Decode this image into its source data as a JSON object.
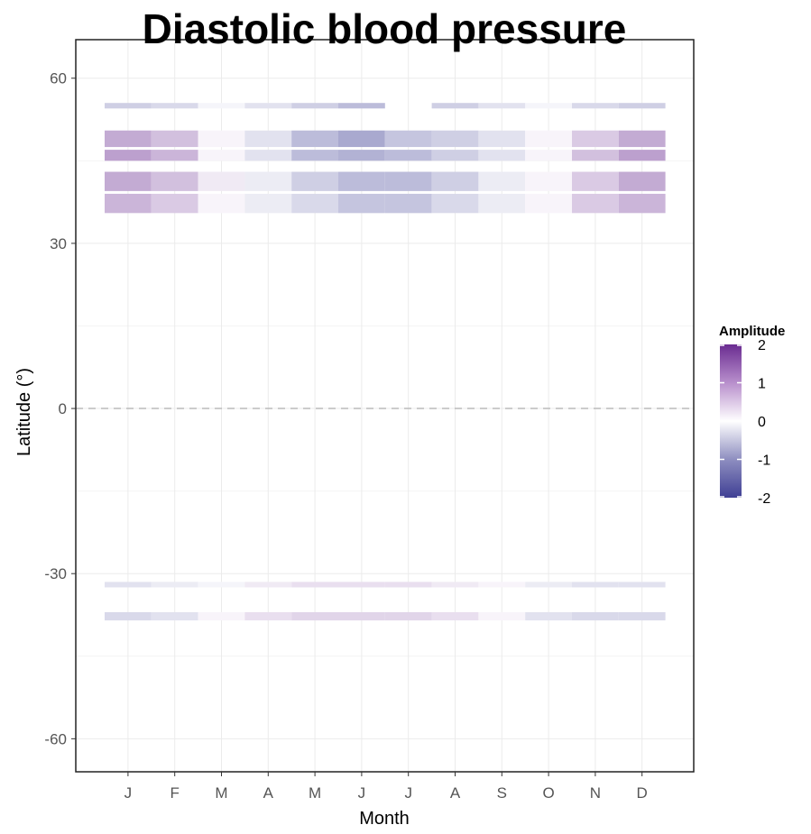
{
  "chart_data": {
    "type": "heatmap",
    "title": "Diastolic blood pressure",
    "xlabel": "Month",
    "ylabel": "Latitude (°)",
    "months": [
      "J",
      "F",
      "M",
      "A",
      "M",
      "J",
      "J",
      "A",
      "S",
      "O",
      "N",
      "D"
    ],
    "yticks": [
      60,
      30,
      0,
      -30,
      -60
    ],
    "ylim": [
      -66,
      67
    ],
    "zero_line": "dashed",
    "grid": true,
    "legend": {
      "title": "Amplitude",
      "placement": "right",
      "ticks": [
        2,
        1,
        0,
        -1,
        -2
      ],
      "range": [
        -2,
        2
      ],
      "colors": {
        "low": "#3f3f94",
        "mid": "#ffffff",
        "high": "#6a2c91"
      }
    },
    "bands": [
      {
        "lat": [
          54.5,
          55.5
        ],
        "values": [
          -0.5,
          -0.4,
          -0.1,
          -0.3,
          -0.5,
          -0.7,
          null,
          -0.5,
          -0.3,
          -0.1,
          -0.4,
          -0.5
        ]
      },
      {
        "lat": [
          47.5,
          50.5
        ],
        "values": [
          0.8,
          0.6,
          0.1,
          -0.3,
          -0.7,
          -0.9,
          -0.6,
          -0.5,
          -0.3,
          0.1,
          0.5,
          0.8
        ]
      },
      {
        "lat": [
          45.0,
          47.0
        ],
        "values": [
          0.9,
          0.7,
          0.1,
          -0.3,
          -0.7,
          -0.8,
          -0.7,
          -0.5,
          -0.3,
          0.1,
          0.6,
          0.9
        ]
      },
      {
        "lat": [
          39.5,
          43.0
        ],
        "values": [
          0.8,
          0.6,
          0.2,
          -0.2,
          -0.5,
          -0.7,
          -0.7,
          -0.5,
          -0.2,
          0.1,
          0.5,
          0.8
        ]
      },
      {
        "lat": [
          35.5,
          39.0
        ],
        "values": [
          0.7,
          0.5,
          0.1,
          -0.2,
          -0.4,
          -0.6,
          -0.6,
          -0.4,
          -0.2,
          0.1,
          0.5,
          0.7
        ]
      },
      {
        "lat": [
          -32.5,
          -31.5
        ],
        "values": [
          -0.3,
          -0.2,
          -0.1,
          0.2,
          0.3,
          0.3,
          0.3,
          0.2,
          0.1,
          -0.2,
          -0.3,
          -0.3
        ]
      },
      {
        "lat": [
          -38.5,
          -37.0
        ],
        "values": [
          -0.4,
          -0.3,
          0.1,
          0.3,
          0.4,
          0.4,
          0.4,
          0.3,
          0.1,
          -0.3,
          -0.4,
          -0.4
        ]
      }
    ]
  }
}
